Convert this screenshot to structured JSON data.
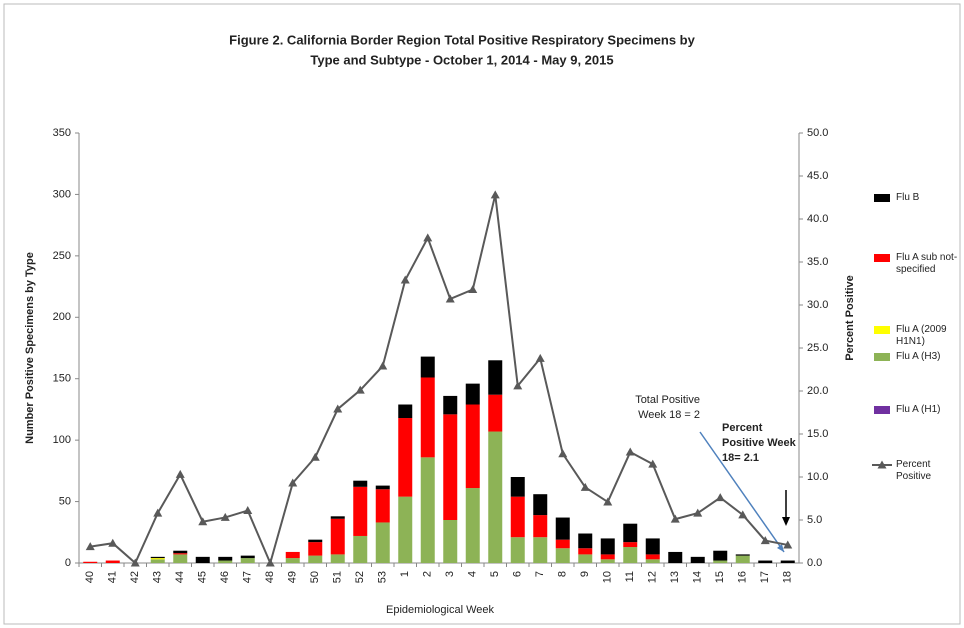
{
  "chart_data": {
    "type": "bar",
    "title": [
      "Figure 2. California Border Region Total Positive Respiratory Specimens by",
      "Type and Subtype - October 1, 2014 - May 9, 2015"
    ],
    "x_label": "Epidemiological Week",
    "y_label": "Number Positive Specimens by Type",
    "y2_label": "Percent Positive",
    "categories": [
      "40",
      "41",
      "42",
      "43",
      "44",
      "45",
      "46",
      "47",
      "48",
      "49",
      "50",
      "51",
      "52",
      "53",
      "1",
      "2",
      "3",
      "4",
      "5",
      "6",
      "7",
      "8",
      "9",
      "10",
      "11",
      "12",
      "13",
      "14",
      "15",
      "16",
      "17",
      "18"
    ],
    "series": [
      {
        "name": "Flu B",
        "type": "bar",
        "color": "#000000",
        "values": [
          0,
          0,
          0,
          1,
          2,
          5,
          3,
          2,
          0,
          0,
          2,
          2,
          5,
          3,
          11,
          17,
          15,
          17,
          28,
          16,
          17,
          18,
          12,
          13,
          15,
          13,
          9,
          5,
          8,
          1,
          2,
          2
        ]
      },
      {
        "name": "Flu A sub not-specified",
        "type": "bar",
        "color": "#ff0000",
        "values": [
          1,
          2,
          0,
          0,
          1,
          0,
          0,
          0,
          0,
          5,
          11,
          29,
          40,
          27,
          64,
          65,
          86,
          68,
          30,
          33,
          18,
          7,
          5,
          4,
          4,
          4,
          0,
          0,
          0,
          0,
          0,
          0
        ]
      },
      {
        "name": "Flu A (2009 H1N1)",
        "type": "bar",
        "color": "#ffff00",
        "values": [
          0,
          0,
          0,
          1,
          0,
          0,
          0,
          0,
          0,
          0,
          0,
          0,
          0,
          0,
          0,
          0,
          0,
          0,
          0,
          0,
          0,
          0,
          0,
          0,
          0,
          0,
          0,
          0,
          0,
          0,
          0,
          0
        ]
      },
      {
        "name": "Flu A (H3)",
        "type": "bar",
        "color": "#8db356",
        "values": [
          0,
          0,
          0,
          3,
          7,
          0,
          2,
          4,
          0,
          4,
          6,
          7,
          22,
          33,
          54,
          86,
          35,
          61,
          107,
          21,
          21,
          12,
          7,
          3,
          13,
          3,
          0,
          0,
          2,
          6,
          0,
          0
        ]
      },
      {
        "name": "Flu A (H1)",
        "type": "bar",
        "color": "#7030a0",
        "values": [
          0,
          0,
          0,
          0,
          0,
          0,
          0,
          0,
          0,
          0,
          0,
          0,
          0,
          0,
          0,
          0,
          0,
          0,
          0,
          0,
          0,
          0,
          0,
          0,
          0,
          0,
          0,
          0,
          0,
          0,
          0,
          0
        ]
      },
      {
        "name": "Percent Positive",
        "type": "line",
        "axis": "y2",
        "color": "#595959",
        "values": [
          1.9,
          2.3,
          0,
          5.8,
          10.3,
          4.8,
          5.3,
          6.1,
          0,
          9.3,
          12.3,
          17.9,
          20.1,
          22.9,
          32.9,
          37.8,
          30.7,
          31.8,
          42.8,
          20.6,
          23.8,
          12.7,
          8.8,
          7.1,
          12.9,
          11.5,
          5.1,
          5.8,
          7.6,
          5.6,
          2.6,
          2.1
        ]
      }
    ],
    "ylim": [
      0,
      350
    ],
    "yticks": [
      0,
      50,
      100,
      150,
      200,
      250,
      300,
      350
    ],
    "y2lim": [
      0,
      50
    ],
    "y2ticks": [
      {
        "value": 0,
        "label": "0.0"
      },
      {
        "value": 5,
        "label": "5.0"
      },
      {
        "value": 10,
        "label": "10.0"
      },
      {
        "value": 15,
        "label": "15.0"
      },
      {
        "value": 20,
        "label": "20.0"
      },
      {
        "value": 25,
        "label": "25.0"
      },
      {
        "value": 30,
        "label": "30.0"
      },
      {
        "value": 35,
        "label": "35.0"
      },
      {
        "value": 40,
        "label": "40.0"
      },
      {
        "value": 45,
        "label": "45.0"
      },
      {
        "value": 50,
        "label": "50.0"
      }
    ],
    "annotations": [
      {
        "lines": [
          "Total Positive",
          "Week  18 = 2"
        ],
        "color": "#4f81bd"
      },
      {
        "lines": [
          "Percent",
          "Positive Week",
          "18= 2.1"
        ],
        "color": "#000000"
      }
    ]
  }
}
